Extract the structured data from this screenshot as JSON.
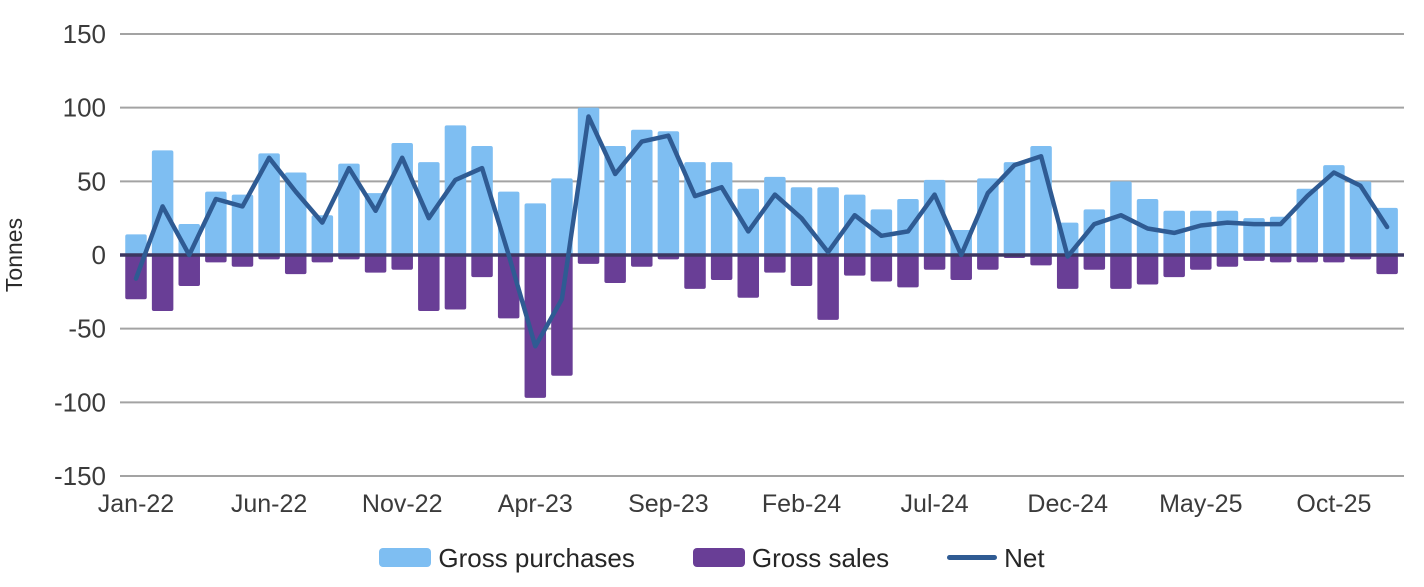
{
  "axis": {
    "ylabel": "Tonnes"
  },
  "legend": {
    "purchases_label": "Gross purchases",
    "sales_label": "Gross sales",
    "net_label": "Net"
  },
  "chart_data": {
    "type": "bar",
    "subtype": "bar-line-combo",
    "title": "",
    "xlabel": "",
    "ylabel": "Tonnes",
    "ylim": [
      -150,
      150
    ],
    "y_ticks": [
      150,
      100,
      50,
      0,
      -50,
      -100,
      -150
    ],
    "grid": "horizontal",
    "legend_position": "bottom",
    "x_ticks": [
      {
        "label": "Jan-22",
        "index": 0
      },
      {
        "label": "Jun-22",
        "index": 5
      },
      {
        "label": "Nov-22",
        "index": 10
      },
      {
        "label": "Apr-23",
        "index": 15
      },
      {
        "label": "Sep-23",
        "index": 20
      },
      {
        "label": "Feb-24",
        "index": 25
      },
      {
        "label": "Jul-24",
        "index": 30
      },
      {
        "label": "Dec-24",
        "index": 35
      },
      {
        "label": "May-25",
        "index": 40
      },
      {
        "label": "Oct-25",
        "index": 45
      }
    ],
    "categories": [
      "Jan-22",
      "Feb-22",
      "Mar-22",
      "Apr-22",
      "May-22",
      "Jun-22",
      "Jul-22",
      "Aug-22",
      "Sep-22",
      "Oct-22",
      "Nov-22",
      "Dec-22",
      "Jan-23",
      "Feb-23",
      "Mar-23",
      "Apr-23",
      "May-23",
      "Jun-23",
      "Jul-23",
      "Aug-23",
      "Sep-23",
      "Oct-23",
      "Nov-23",
      "Dec-23",
      "Jan-24",
      "Feb-24",
      "Mar-24",
      "Apr-24",
      "May-24",
      "Jun-24",
      "Jul-24",
      "Aug-24",
      "Sep-24",
      "Oct-24",
      "Nov-24",
      "Dec-24",
      "Jan-25",
      "Feb-25",
      "Mar-25",
      "Apr-25",
      "May-25",
      "Jun-25",
      "Jul-25",
      "Aug-25",
      "Sep-25",
      "Oct-25",
      "Nov-25",
      "Dec-25"
    ],
    "series": [
      {
        "name": "Gross purchases",
        "type": "bar",
        "color": "#7EBEF2",
        "values": [
          14,
          71,
          21,
          43,
          41,
          69,
          56,
          27,
          62,
          42,
          76,
          63,
          88,
          74,
          43,
          35,
          52,
          100,
          74,
          85,
          84,
          63,
          63,
          45,
          53,
          46,
          46,
          41,
          31,
          38,
          51,
          17,
          52,
          63,
          74,
          22,
          31,
          50,
          38,
          30,
          30,
          30,
          25,
          26,
          45,
          61,
          50,
          32
        ]
      },
      {
        "name": "Gross sales",
        "type": "bar",
        "color": "#693E96",
        "values": [
          -30,
          -38,
          -21,
          -5,
          -8,
          -3,
          -13,
          -5,
          -3,
          -12,
          -10,
          -38,
          -37,
          -15,
          -43,
          -97,
          -82,
          -6,
          -19,
          -8,
          -3,
          -23,
          -17,
          -29,
          -12,
          -21,
          -44,
          -14,
          -18,
          -22,
          -10,
          -17,
          -10,
          -2,
          -7,
          -23,
          -10,
          -23,
          -20,
          -15,
          -10,
          -8,
          -4,
          -5,
          -5,
          -5,
          -3,
          -13
        ]
      },
      {
        "name": "Net",
        "type": "line",
        "color": "#2F5B93",
        "values": [
          -16,
          33,
          0,
          38,
          33,
          66,
          43,
          22,
          59,
          30,
          66,
          25,
          51,
          59,
          0,
          -62,
          -30,
          94,
          55,
          77,
          81,
          40,
          46,
          16,
          41,
          25,
          2,
          27,
          13,
          16,
          41,
          0,
          42,
          61,
          67,
          -1,
          21,
          27,
          18,
          15,
          20,
          22,
          21,
          21,
          40,
          56,
          47,
          19
        ]
      }
    ],
    "colors": {
      "gridline": "#A3A3A3",
      "zero_axis": "#3C3660",
      "tick_text": "#3B3B3B"
    }
  }
}
